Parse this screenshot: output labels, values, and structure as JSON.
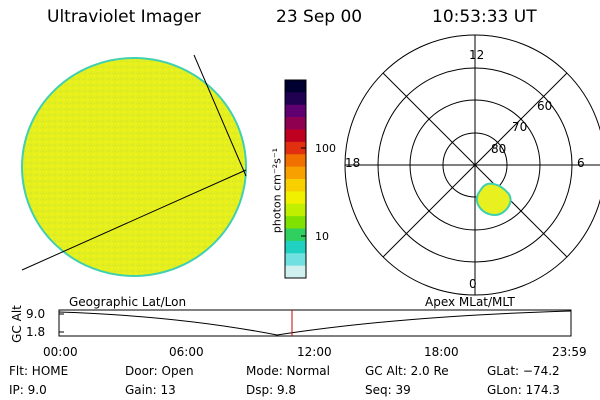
{
  "header": {
    "instrument": "Ultraviolet Imager",
    "date": "23 Sep 00",
    "time": "10:53:33 UT"
  },
  "colorbar": {
    "unit_label": "photon cm⁻²s⁻¹",
    "ticks": [
      "100",
      "10"
    ],
    "colors": [
      "#000030",
      "#200050",
      "#600070",
      "#900050",
      "#c00020",
      "#e03010",
      "#f07000",
      "#f8a000",
      "#f8d000",
      "#f0f000",
      "#c0f000",
      "#80e000",
      "#30d060",
      "#20d0c0",
      "#70e0e0",
      "#d0f0f0"
    ]
  },
  "polar_plot": {
    "mlt_labels": {
      "top": "12",
      "bottom": "0",
      "left": "18",
      "right": "6"
    },
    "lat_labels": [
      "60",
      "70",
      "80"
    ]
  },
  "timeline": {
    "left_title": "Geographic Lat/Lon",
    "right_title": "Apex MLat/MLT",
    "y_axis_label": "GC Alt",
    "y_ticks": [
      "9.0",
      "1.8"
    ],
    "x_ticks": [
      "00:00",
      "06:00",
      "12:00",
      "18:00",
      "23:59"
    ],
    "current_time_fraction": 0.455
  },
  "info": {
    "flt": "Flt: HOME",
    "ip": "IP:  9.0",
    "door": "Door: Open",
    "gain": "Gain: 13",
    "mode": "Mode: Normal",
    "dsp": "Dsp:     9.8",
    "gc_alt": "GC Alt: 2.0 Re",
    "seq": "Seq: 39",
    "glat": "GLat: −74.2",
    "glon": "GLon: 174.3"
  },
  "colors": {
    "disk_fill": "#e8f020",
    "disk_edge": "#40d0b0",
    "aurora_fill": "#e8f020",
    "current_time_marker": "#cc0000"
  }
}
